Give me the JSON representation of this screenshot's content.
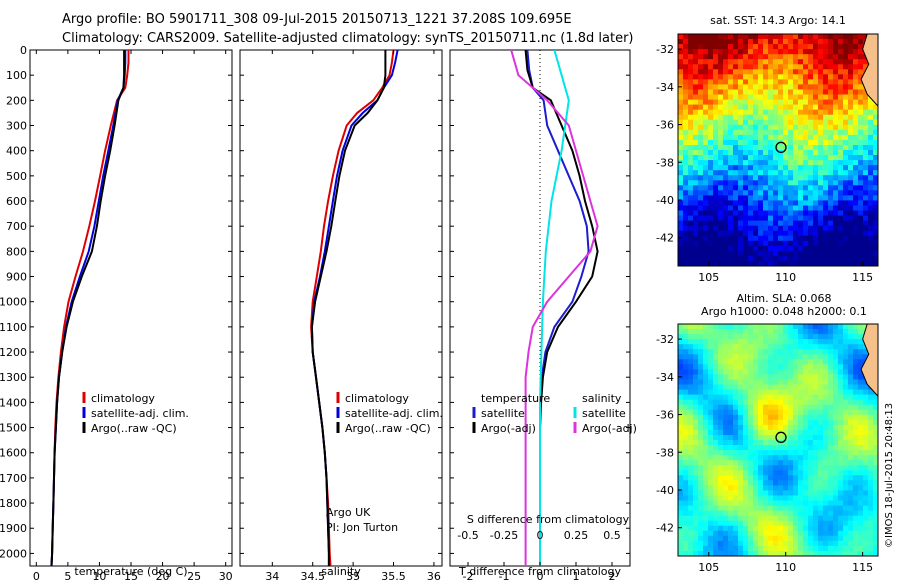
{
  "header": {
    "line1": "Argo profile: BO 5901711_308 09-Jul-2015 20150713_1221 37.208S 109.695E",
    "line2": "Climatology: CARS2009. Satellite-adjusted climatology: synTS_20150711.nc (1.8d later)"
  },
  "credits": {
    "watermark": "©IMOS 18-Jul-2015 20:48:13"
  },
  "colors": {
    "climatology": "#dd0000",
    "satellite": "#0000dd",
    "argo": "#000000",
    "t_sat": "#1c1cd0",
    "s_sat": "#00e5e5",
    "s_argo": "#dd33dd",
    "marker": "#000000"
  },
  "legend_labels": {
    "clim": "climatology",
    "sat": "satellite-adj. clim.",
    "argo": "Argo(..raw -QC)"
  },
  "chart_data": [
    {
      "type": "line",
      "panel": "temperature",
      "xlabel": "temperature (deg C)",
      "ylabel": "",
      "xlim": [
        -1,
        31
      ],
      "ylim": [
        2050,
        0
      ],
      "y_reversed": true,
      "xticks": [
        "0",
        "5",
        "10",
        "15",
        "20",
        "25",
        "30"
      ],
      "yticks": [
        "0",
        "100",
        "200",
        "300",
        "400",
        "500",
        "600",
        "700",
        "800",
        "900",
        "1000",
        "1100",
        "1200",
        "1300",
        "1400",
        "1500",
        "1600",
        "1700",
        "1800",
        "1900",
        "2000"
      ],
      "legend_position": "lower-center",
      "series": [
        {
          "name": "climatology",
          "color_key": "climatology",
          "points": [
            [
              14.6,
              0
            ],
            [
              14.6,
              50
            ],
            [
              14.4,
              100
            ],
            [
              14.1,
              150
            ],
            [
              12.8,
              200
            ],
            [
              11.8,
              300
            ],
            [
              10.9,
              400
            ],
            [
              10.1,
              500
            ],
            [
              9.3,
              600
            ],
            [
              8.4,
              700
            ],
            [
              7.4,
              800
            ],
            [
              6.2,
              900
            ],
            [
              5.1,
              1000
            ],
            [
              4.4,
              1100
            ],
            [
              3.9,
              1200
            ],
            [
              3.5,
              1300
            ],
            [
              3.2,
              1400
            ],
            [
              3.0,
              1500
            ],
            [
              2.9,
              1600
            ],
            [
              2.8,
              1700
            ],
            [
              2.7,
              1800
            ],
            [
              2.6,
              1900
            ],
            [
              2.5,
              2000
            ],
            [
              2.4,
              2050
            ]
          ]
        },
        {
          "name": "satellite-adj. clim.",
          "color_key": "satellite",
          "points": [
            [
              14.1,
              0
            ],
            [
              14.1,
              50
            ],
            [
              14.0,
              100
            ],
            [
              13.8,
              150
            ],
            [
              12.9,
              200
            ],
            [
              12.2,
              300
            ],
            [
              11.4,
              400
            ],
            [
              10.6,
              500
            ],
            [
              9.9,
              600
            ],
            [
              9.2,
              700
            ],
            [
              8.3,
              800
            ],
            [
              6.9,
              900
            ],
            [
              5.6,
              1000
            ],
            [
              4.7,
              1100
            ],
            [
              4.1,
              1200
            ],
            [
              3.6,
              1300
            ],
            [
              3.3,
              1400
            ],
            [
              3.1,
              1500
            ],
            [
              2.9,
              1600
            ],
            [
              2.8,
              1700
            ],
            [
              2.7,
              1800
            ],
            [
              2.6,
              1900
            ],
            [
              2.5,
              2000
            ],
            [
              2.4,
              2050
            ]
          ]
        },
        {
          "name": "Argo(..raw -QC)",
          "color_key": "argo",
          "points": [
            [
              13.9,
              0
            ],
            [
              13.9,
              50
            ],
            [
              13.9,
              100
            ],
            [
              13.8,
              150
            ],
            [
              13.0,
              200
            ],
            [
              12.4,
              300
            ],
            [
              11.7,
              400
            ],
            [
              10.9,
              500
            ],
            [
              10.2,
              600
            ],
            [
              9.6,
              700
            ],
            [
              8.8,
              800
            ],
            [
              7.2,
              900
            ],
            [
              5.8,
              1000
            ],
            [
              4.8,
              1100
            ],
            [
              4.1,
              1200
            ],
            [
              3.6,
              1300
            ],
            [
              3.3,
              1400
            ],
            [
              3.1,
              1500
            ],
            [
              2.9,
              1600
            ],
            [
              2.8,
              1700
            ],
            [
              2.7,
              1800
            ],
            [
              2.6,
              1900
            ],
            [
              2.5,
              2000
            ],
            [
              2.4,
              2050
            ]
          ]
        }
      ]
    },
    {
      "type": "line",
      "panel": "salinity",
      "xlabel": "salinity",
      "ylabel": "",
      "xlim": [
        33.6,
        36.1
      ],
      "ylim": [
        2050,
        0
      ],
      "y_reversed": true,
      "xticks": [
        "34",
        "34.5",
        "35",
        "35.5",
        "36"
      ],
      "legend_position": "lower-center",
      "annotation": [
        "Argo UK",
        "PI: Jon Turton"
      ],
      "series": [
        {
          "name": "climatology",
          "color_key": "climatology",
          "points": [
            [
              35.5,
              0
            ],
            [
              35.48,
              50
            ],
            [
              35.45,
              100
            ],
            [
              35.36,
              150
            ],
            [
              35.25,
              200
            ],
            [
              35.05,
              250
            ],
            [
              34.92,
              300
            ],
            [
              34.82,
              400
            ],
            [
              34.75,
              500
            ],
            [
              34.69,
              600
            ],
            [
              34.64,
              700
            ],
            [
              34.6,
              800
            ],
            [
              34.55,
              900
            ],
            [
              34.5,
              1000
            ],
            [
              34.48,
              1100
            ],
            [
              34.5,
              1200
            ],
            [
              34.54,
              1300
            ],
            [
              34.58,
              1400
            ],
            [
              34.62,
              1500
            ],
            [
              34.65,
              1600
            ],
            [
              34.67,
              1700
            ],
            [
              34.69,
              1800
            ],
            [
              34.7,
              1900
            ],
            [
              34.71,
              2000
            ],
            [
              34.72,
              2050
            ]
          ]
        },
        {
          "name": "satellite-adj. clim.",
          "color_key": "satellite",
          "points": [
            [
              35.55,
              0
            ],
            [
              35.52,
              50
            ],
            [
              35.48,
              100
            ],
            [
              35.38,
              150
            ],
            [
              35.3,
              200
            ],
            [
              35.12,
              250
            ],
            [
              34.98,
              300
            ],
            [
              34.87,
              400
            ],
            [
              34.8,
              500
            ],
            [
              34.75,
              600
            ],
            [
              34.7,
              700
            ],
            [
              34.65,
              800
            ],
            [
              34.59,
              900
            ],
            [
              34.52,
              1000
            ],
            [
              34.49,
              1100
            ],
            [
              34.5,
              1200
            ],
            [
              34.54,
              1300
            ],
            [
              34.58,
              1400
            ],
            [
              34.62,
              1500
            ],
            [
              34.65,
              1600
            ],
            [
              34.67,
              1700
            ],
            [
              34.68,
              1800
            ],
            [
              34.69,
              1900
            ],
            [
              34.7,
              2000
            ],
            [
              34.7,
              2050
            ]
          ]
        },
        {
          "name": "Argo(..raw -QC)",
          "color_key": "argo",
          "points": [
            [
              35.4,
              0
            ],
            [
              35.4,
              50
            ],
            [
              35.4,
              100
            ],
            [
              35.38,
              150
            ],
            [
              35.3,
              200
            ],
            [
              35.18,
              250
            ],
            [
              35.02,
              300
            ],
            [
              34.9,
              400
            ],
            [
              34.83,
              500
            ],
            [
              34.78,
              600
            ],
            [
              34.73,
              700
            ],
            [
              34.67,
              800
            ],
            [
              34.6,
              900
            ],
            [
              34.53,
              1000
            ],
            [
              34.49,
              1100
            ],
            [
              34.5,
              1200
            ],
            [
              34.54,
              1300
            ],
            [
              34.58,
              1400
            ],
            [
              34.62,
              1500
            ],
            [
              34.65,
              1600
            ],
            [
              34.67,
              1700
            ],
            [
              34.68,
              1800
            ],
            [
              34.69,
              1900
            ],
            [
              34.7,
              2000
            ],
            [
              34.7,
              2050
            ]
          ]
        }
      ]
    },
    {
      "type": "line",
      "panel": "difference",
      "xlabel": "T difference from climatology",
      "xlabel_top": "S difference from climatology",
      "xlim": [
        -2.5,
        2.5
      ],
      "ylim": [
        2050,
        0
      ],
      "y_reversed": true,
      "xticks": [
        "-2",
        "-1",
        "0",
        "1",
        "2"
      ],
      "xticks_top": [
        "-0.5",
        "-0.25",
        "0",
        "0.25",
        "0.5"
      ],
      "legend_titles": [
        "temperature",
        "salinity"
      ],
      "legend_entries": [
        "satellite",
        "Argo(-adj)",
        "satellite",
        "Argo(-adj)"
      ],
      "series": [
        {
          "name": "satellite",
          "group": "temperature",
          "color_key": "t_sat",
          "points": [
            [
              -0.35,
              0
            ],
            [
              -0.3,
              80
            ],
            [
              -0.2,
              150
            ],
            [
              0.1,
              200
            ],
            [
              0.2,
              300
            ],
            [
              0.5,
              400
            ],
            [
              0.8,
              500
            ],
            [
              1.1,
              600
            ],
            [
              1.3,
              700
            ],
            [
              1.35,
              800
            ],
            [
              1.15,
              900
            ],
            [
              0.9,
              1000
            ],
            [
              0.4,
              1100
            ],
            [
              0.15,
              1200
            ],
            [
              0.05,
              1300
            ],
            [
              0.02,
              1400
            ],
            [
              0.0,
              1500
            ],
            [
              0.0,
              2050
            ]
          ]
        },
        {
          "name": "Argo(-adj)",
          "group": "temperature",
          "color_key": "argo",
          "points": [
            [
              -0.4,
              0
            ],
            [
              -0.35,
              80
            ],
            [
              -0.2,
              150
            ],
            [
              0.3,
              200
            ],
            [
              0.6,
              300
            ],
            [
              0.9,
              400
            ],
            [
              1.1,
              500
            ],
            [
              1.25,
              600
            ],
            [
              1.45,
              700
            ],
            [
              1.6,
              800
            ],
            [
              1.45,
              900
            ],
            [
              1.0,
              1000
            ],
            [
              0.5,
              1100
            ],
            [
              0.2,
              1200
            ],
            [
              0.08,
              1300
            ],
            [
              0.03,
              1400
            ],
            [
              0.0,
              1500
            ],
            [
              0.0,
              2050
            ]
          ]
        },
        {
          "name": "satellite",
          "group": "salinity",
          "color_key": "s_sat",
          "points": [
            [
              0.1,
              0
            ],
            [
              0.15,
              100
            ],
            [
              0.2,
              200
            ],
            [
              0.15,
              400
            ],
            [
              0.08,
              600
            ],
            [
              0.04,
              800
            ],
            [
              0.02,
              1000
            ],
            [
              0.01,
              1200
            ],
            [
              0.0,
              1400
            ],
            [
              0.0,
              2050
            ]
          ]
        },
        {
          "name": "Argo(-adj)",
          "group": "salinity",
          "color_key": "s_argo",
          "points": [
            [
              -0.2,
              0
            ],
            [
              -0.15,
              100
            ],
            [
              0.05,
              200
            ],
            [
              0.2,
              300
            ],
            [
              0.3,
              500
            ],
            [
              0.4,
              700
            ],
            [
              0.35,
              800
            ],
            [
              0.2,
              900
            ],
            [
              0.05,
              1000
            ],
            [
              -0.05,
              1100
            ],
            [
              -0.08,
              1200
            ],
            [
              -0.1,
              1300
            ],
            [
              -0.1,
              1400
            ],
            [
              -0.1,
              2050
            ]
          ]
        }
      ]
    },
    {
      "type": "heatmap",
      "panel": "sst_map",
      "title": "sat. SST: 14.3 Argo: 14.1",
      "xlim": [
        103,
        116
      ],
      "ylim": [
        -43.5,
        -31.2
      ],
      "xticks": [
        "105",
        "110",
        "115"
      ],
      "yticks": [
        "-32",
        "-34",
        "-36",
        "-38",
        "-40",
        "-42"
      ],
      "marker": [
        109.695,
        -37.208
      ]
    },
    {
      "type": "heatmap",
      "panel": "sla_map",
      "title": "Altim. SLA: 0.068",
      "subtitle": "Argo h1000: 0.048 h2000: 0.1",
      "xlim": [
        103,
        116
      ],
      "ylim": [
        -43.5,
        -31.2
      ],
      "xticks": [
        "105",
        "110",
        "115"
      ],
      "yticks": [
        "-32",
        "-34",
        "-36",
        "-38",
        "-40",
        "-42"
      ],
      "marker": [
        109.695,
        -37.208
      ]
    }
  ]
}
